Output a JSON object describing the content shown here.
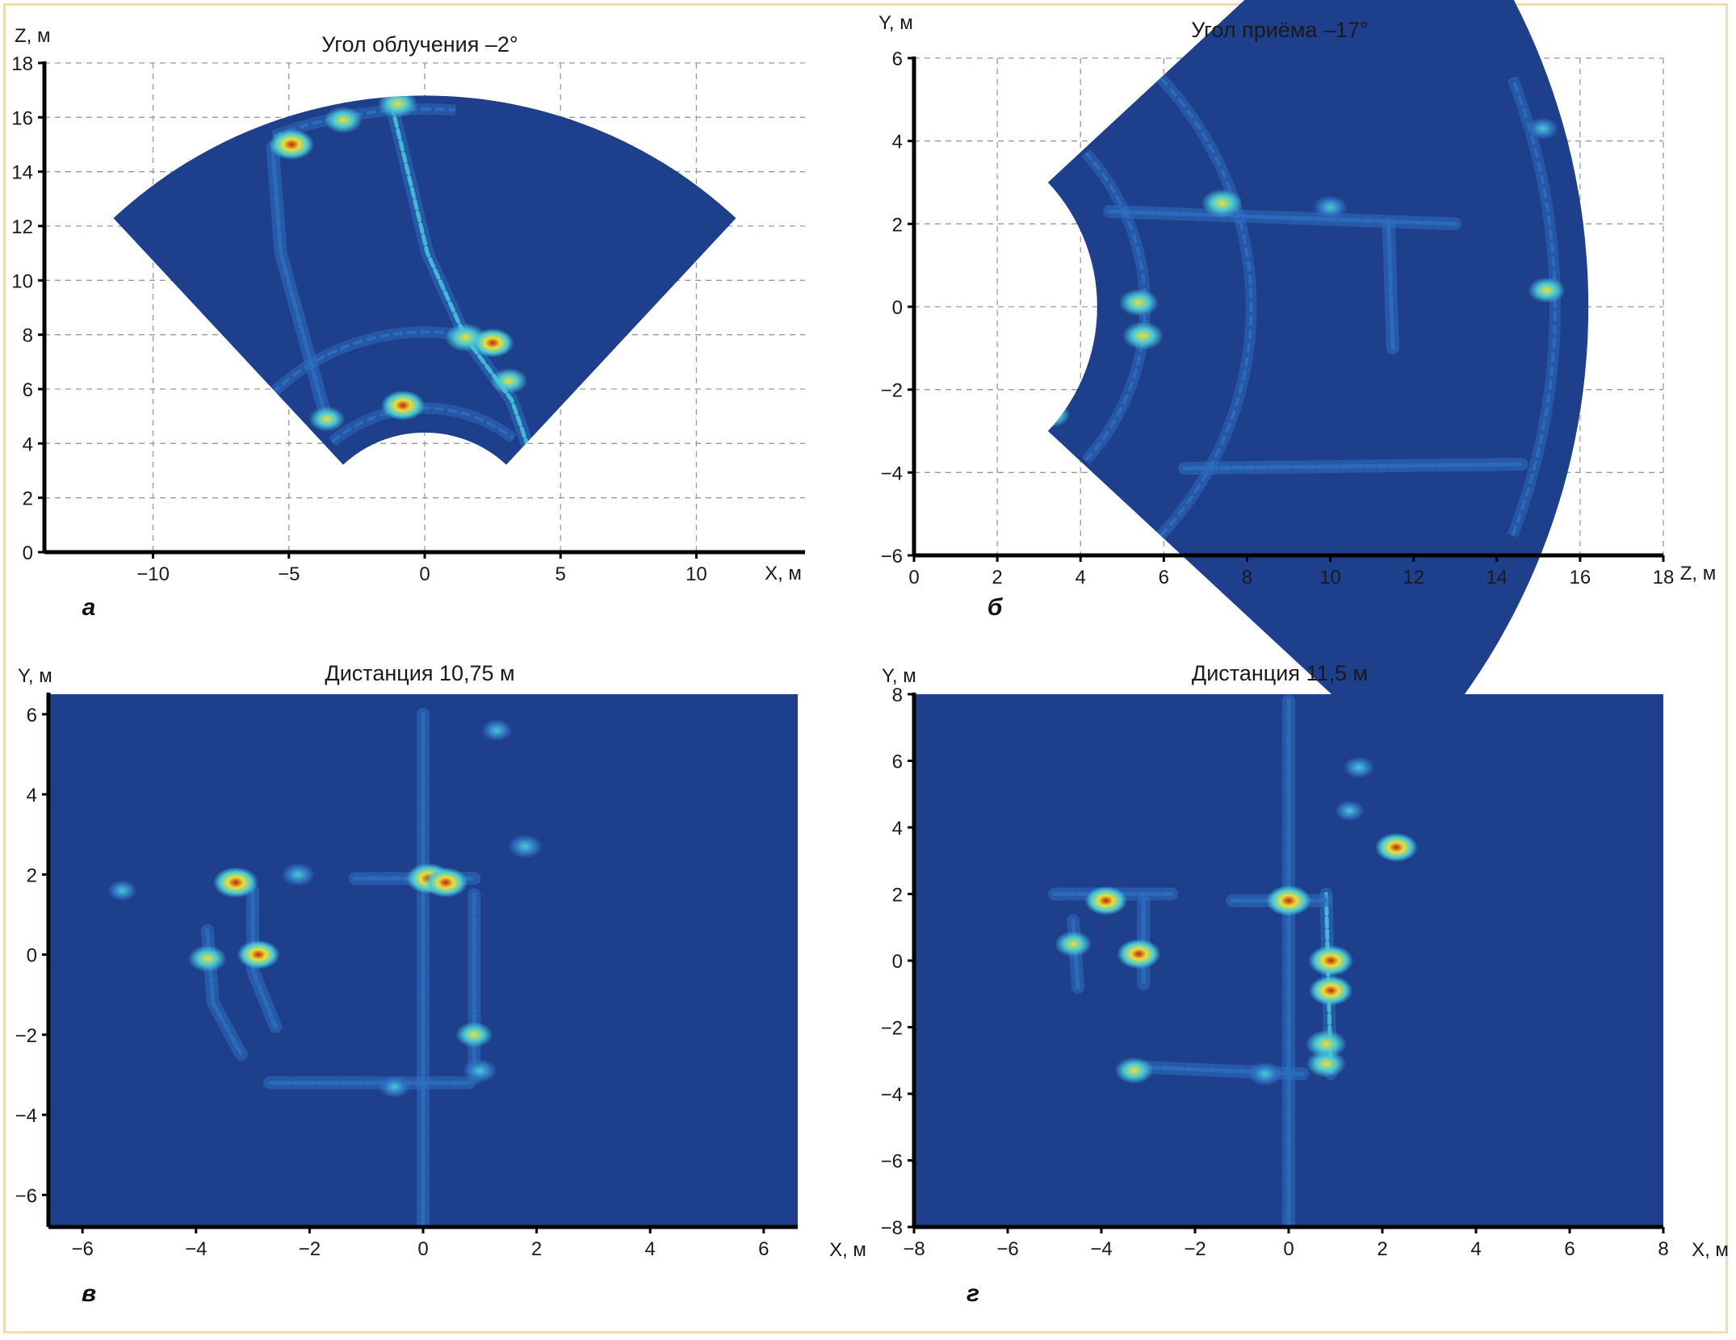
{
  "colors": {
    "background": "#1d3f8c",
    "low": "#2e6fc0",
    "mid": "#48c9d8",
    "high": "#e8e038",
    "peak": "#c42010",
    "grid": "#9a9a9a",
    "frame": "#f3dca8"
  },
  "chart_data": [
    {
      "id": "a",
      "type": "heatmap",
      "panel_label": "а",
      "title": "Угол облучения –2°",
      "xlabel": "X, м",
      "ylabel": "Z, м",
      "xlim": [
        -14,
        14
      ],
      "ylim": [
        0,
        18
      ],
      "xticks": [
        -10,
        -5,
        0,
        5,
        10
      ],
      "yticks": [
        0,
        2,
        4,
        6,
        8,
        10,
        12,
        14,
        16,
        18
      ],
      "grid": true,
      "sector": {
        "center": [
          0,
          0
        ],
        "r_inner": 4.4,
        "r_outer": 16.8,
        "half_angle_deg": 43
      },
      "features": [
        {
          "kind": "polyline",
          "points": [
            [
              -1.2,
              16.4
            ],
            [
              0.1,
              11
            ],
            [
              1.5,
              7.9
            ],
            [
              3.2,
              5.6
            ],
            [
              3.8,
              3.9
            ]
          ],
          "level": 0.6
        },
        {
          "kind": "polyline",
          "points": [
            [
              -5.6,
              14.9
            ],
            [
              -5.3,
              11
            ],
            [
              -3.7,
              5.2
            ]
          ],
          "level": 0.4
        },
        {
          "kind": "arc",
          "r": 8.1,
          "from_deg": -44,
          "to_deg": 22,
          "level": 0.35
        },
        {
          "kind": "arc",
          "r": 16.3,
          "from_deg": -20,
          "to_deg": 4,
          "level": 0.55
        },
        {
          "kind": "arc",
          "r": 5.3,
          "from_deg": -40,
          "to_deg": 38,
          "level": 0.5
        },
        {
          "kind": "spot",
          "x": -4.9,
          "y": 15.0,
          "level": 1.0
        },
        {
          "kind": "spot",
          "x": -3.0,
          "y": 15.9,
          "level": 0.75
        },
        {
          "kind": "spot",
          "x": -1.0,
          "y": 16.5,
          "level": 0.8
        },
        {
          "kind": "spot",
          "x": 1.5,
          "y": 7.9,
          "level": 0.85
        },
        {
          "kind": "spot",
          "x": 2.5,
          "y": 7.7,
          "level": 0.9
        },
        {
          "kind": "spot",
          "x": -0.8,
          "y": 5.4,
          "level": 0.95
        },
        {
          "kind": "spot",
          "x": 3.1,
          "y": 6.3,
          "level": 0.7
        },
        {
          "kind": "spot",
          "x": -3.6,
          "y": 4.9,
          "level": 0.65
        }
      ]
    },
    {
      "id": "b",
      "type": "heatmap",
      "panel_label": "б",
      "title": "Угол приёма –17°",
      "xlabel": "Z, м",
      "ylabel": "Y, м",
      "xlim": [
        0,
        18
      ],
      "ylim": [
        -6,
        6
      ],
      "xticks": [
        0,
        2,
        4,
        6,
        8,
        10,
        12,
        14,
        16,
        18
      ],
      "yticks": [
        -6,
        -4,
        -2,
        0,
        2,
        4,
        6
      ],
      "grid": true,
      "sector": {
        "center": [
          0,
          0
        ],
        "r_inner": 4.4,
        "r_outer": 16.2,
        "half_angle_deg": 43
      },
      "features": [
        {
          "kind": "arc",
          "r": 5.55,
          "from_deg": -42,
          "to_deg": 42,
          "level": 0.55
        },
        {
          "kind": "arc",
          "r": 8.1,
          "from_deg": -43,
          "to_deg": 43,
          "level": 0.35
        },
        {
          "kind": "arc",
          "r": 15.4,
          "from_deg": -21,
          "to_deg": 21,
          "level": 0.55
        },
        {
          "kind": "polyline",
          "points": [
            [
              4.7,
              2.3
            ],
            [
              13.0,
              2.0
            ]
          ],
          "level": 0.45
        },
        {
          "kind": "polyline",
          "points": [
            [
              6.5,
              -3.9
            ],
            [
              14.6,
              -3.8
            ]
          ],
          "level": 0.5
        },
        {
          "kind": "polyline",
          "points": [
            [
              11.4,
              2.0
            ],
            [
              11.5,
              -1.0
            ]
          ],
          "level": 0.55
        },
        {
          "kind": "spot",
          "x": 5.4,
          "y": 0.1,
          "level": 0.8
        },
        {
          "kind": "spot",
          "x": 5.5,
          "y": -0.7,
          "level": 0.85
        },
        {
          "kind": "spot",
          "x": 7.4,
          "y": 2.5,
          "level": 0.85
        },
        {
          "kind": "spot",
          "x": 3.3,
          "y": -2.6,
          "level": 0.7
        },
        {
          "kind": "spot",
          "x": 15.2,
          "y": 0.4,
          "level": 0.7
        },
        {
          "kind": "spot",
          "x": 15.1,
          "y": 4.3,
          "level": 0.5
        },
        {
          "kind": "spot",
          "x": 10.0,
          "y": 2.4,
          "level": 0.6
        }
      ]
    },
    {
      "id": "v",
      "type": "heatmap",
      "panel_label": "в",
      "title": "Дистанция 10,75 м",
      "xlabel": "X, м",
      "ylabel": "Y, м",
      "xlim": [
        -6.6,
        6.6
      ],
      "ylim": [
        -6.8,
        6.5
      ],
      "xticks": [
        -6,
        -4,
        -2,
        0,
        2,
        4,
        6
      ],
      "yticks": [
        -6,
        -4,
        -2,
        0,
        2,
        4,
        6
      ],
      "grid": false,
      "features": [
        {
          "kind": "polyline",
          "points": [
            [
              -3.0,
              1.6
            ],
            [
              -3.0,
              -0.4
            ],
            [
              -2.6,
              -1.8
            ]
          ],
          "level": 0.45
        },
        {
          "kind": "polyline",
          "points": [
            [
              -3.8,
              0.6
            ],
            [
              -3.7,
              -1.2
            ],
            [
              -3.2,
              -2.5
            ]
          ],
          "level": 0.3
        },
        {
          "kind": "polyline",
          "points": [
            [
              -2.7,
              -3.2
            ],
            [
              0.8,
              -3.2
            ]
          ],
          "level": 0.35
        },
        {
          "kind": "polyline",
          "points": [
            [
              0.9,
              1.5
            ],
            [
              0.9,
              -3.1
            ]
          ],
          "level": 0.55
        },
        {
          "kind": "polyline",
          "points": [
            [
              -1.2,
              1.9
            ],
            [
              0.9,
              1.9
            ]
          ],
          "level": 0.5
        },
        {
          "kind": "polyline",
          "points": [
            [
              0,
              6.0
            ],
            [
              0,
              -6.8
            ]
          ],
          "level": 0.2
        },
        {
          "kind": "spot",
          "x": -3.3,
          "y": 1.8,
          "level": 1.0
        },
        {
          "kind": "spot",
          "x": -2.9,
          "y": 0.0,
          "level": 0.9
        },
        {
          "kind": "spot",
          "x": -3.8,
          "y": -0.1,
          "level": 0.75
        },
        {
          "kind": "spot",
          "x": 0.1,
          "y": 1.9,
          "level": 1.0
        },
        {
          "kind": "spot",
          "x": 0.4,
          "y": 1.8,
          "level": 0.95
        },
        {
          "kind": "spot",
          "x": 1.8,
          "y": 2.7,
          "level": 0.6
        },
        {
          "kind": "spot",
          "x": 0.9,
          "y": -2.0,
          "level": 0.7
        },
        {
          "kind": "spot",
          "x": 1.0,
          "y": -2.9,
          "level": 0.6
        },
        {
          "kind": "spot",
          "x": -2.2,
          "y": 2.0,
          "level": 0.55
        },
        {
          "kind": "spot",
          "x": 1.3,
          "y": 5.6,
          "level": 0.45
        },
        {
          "kind": "spot",
          "x": -5.3,
          "y": 1.6,
          "level": 0.4
        },
        {
          "kind": "spot",
          "x": -0.5,
          "y": -3.3,
          "level": 0.5
        }
      ]
    },
    {
      "id": "g",
      "type": "heatmap",
      "panel_label": "г",
      "title": "Дистанция 11,5 м",
      "xlabel": "X, м",
      "ylabel": "Y, м",
      "xlim": [
        -8,
        8
      ],
      "ylim": [
        -8,
        8
      ],
      "xticks": [
        -8,
        -6,
        -4,
        -2,
        0,
        2,
        4,
        6,
        8
      ],
      "yticks": [
        -8,
        -6,
        -4,
        -2,
        0,
        2,
        4,
        6,
        8
      ],
      "grid": false,
      "features": [
        {
          "kind": "polyline",
          "points": [
            [
              -3.1,
              1.8
            ],
            [
              -3.1,
              -0.7
            ]
          ],
          "level": 0.5
        },
        {
          "kind": "polyline",
          "points": [
            [
              -4.6,
              1.2
            ],
            [
              -4.5,
              -0.8
            ]
          ],
          "level": 0.45
        },
        {
          "kind": "polyline",
          "points": [
            [
              -3.2,
              -3.2
            ],
            [
              0.3,
              -3.4
            ]
          ],
          "level": 0.4
        },
        {
          "kind": "polyline",
          "points": [
            [
              0.8,
              2.0
            ],
            [
              0.9,
              -3.4
            ]
          ],
          "level": 0.6
        },
        {
          "kind": "polyline",
          "points": [
            [
              -1.2,
              1.8
            ],
            [
              0.8,
              1.8
            ]
          ],
          "level": 0.5
        },
        {
          "kind": "polyline",
          "points": [
            [
              -5.0,
              2.0
            ],
            [
              -2.5,
              2.0
            ]
          ],
          "level": 0.3
        },
        {
          "kind": "polyline",
          "points": [
            [
              0,
              7.8
            ],
            [
              0,
              -8
            ]
          ],
          "level": 0.2
        },
        {
          "kind": "spot",
          "x": -3.9,
          "y": 1.8,
          "level": 0.9
        },
        {
          "kind": "spot",
          "x": -3.2,
          "y": 0.2,
          "level": 0.95
        },
        {
          "kind": "spot",
          "x": -4.6,
          "y": 0.5,
          "level": 0.7
        },
        {
          "kind": "spot",
          "x": 0.0,
          "y": 1.8,
          "level": 1.0
        },
        {
          "kind": "spot",
          "x": 0.9,
          "y": 0.0,
          "level": 1.0
        },
        {
          "kind": "spot",
          "x": 0.9,
          "y": -0.9,
          "level": 0.95
        },
        {
          "kind": "spot",
          "x": 0.8,
          "y": -2.5,
          "level": 0.85
        },
        {
          "kind": "spot",
          "x": 0.8,
          "y": -3.1,
          "level": 0.8
        },
        {
          "kind": "spot",
          "x": 2.3,
          "y": 3.4,
          "level": 0.9
        },
        {
          "kind": "spot",
          "x": -3.3,
          "y": -3.3,
          "level": 0.75
        },
        {
          "kind": "spot",
          "x": -0.5,
          "y": -3.4,
          "level": 0.6
        },
        {
          "kind": "spot",
          "x": 1.5,
          "y": 5.8,
          "level": 0.45
        },
        {
          "kind": "spot",
          "x": 1.3,
          "y": 4.5,
          "level": 0.4
        }
      ]
    }
  ]
}
